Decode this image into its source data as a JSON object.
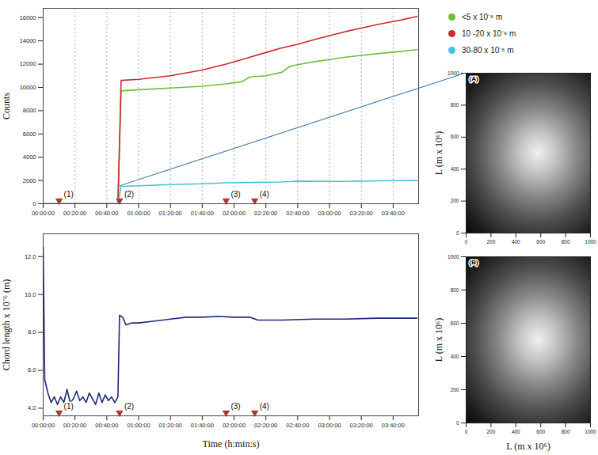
{
  "chart_data": [
    {
      "type": "line",
      "ylabel": "Counts",
      "x": [
        0,
        10,
        20,
        30,
        40,
        47,
        49,
        60,
        80,
        100,
        115,
        125,
        130,
        140,
        150,
        155,
        160,
        170,
        190,
        200,
        210,
        225,
        235
      ],
      "series": [
        {
          "name": "<5 x 10⁻⁶ m",
          "color": "#6cbf3c",
          "values": [
            0,
            0,
            0,
            0,
            0,
            0,
            9700,
            9800,
            9950,
            10100,
            10300,
            10500,
            10900,
            11000,
            11300,
            11800,
            11950,
            12200,
            12600,
            12750,
            12900,
            13100,
            13250
          ]
        },
        {
          "name": "10 -20 x 10⁻⁶ m",
          "color": "#d0282e",
          "values": [
            0,
            0,
            0,
            0,
            0,
            0,
            10600,
            10700,
            11000,
            11500,
            12000,
            12400,
            12600,
            13000,
            13400,
            13550,
            13700,
            14100,
            14800,
            15100,
            15400,
            15800,
            16100
          ]
        },
        {
          "name": "30-80 x 10⁻⁶ m",
          "color": "#46c1dc",
          "values": [
            0,
            0,
            0,
            0,
            0,
            0,
            1500,
            1550,
            1650,
            1720,
            1800,
            1820,
            1830,
            1850,
            1870,
            1900,
            1950,
            1930,
            1920,
            1950,
            1970,
            1990,
            2000
          ]
        }
      ],
      "xlim": [
        0,
        236
      ],
      "xticks": [
        {
          "value": 0,
          "label": "00:00:00"
        },
        {
          "value": 20,
          "label": "00:20:00"
        },
        {
          "value": 40,
          "label": "00:40:00"
        },
        {
          "value": 60,
          "label": "01:00:00"
        },
        {
          "value": 80,
          "label": "01:20:00"
        },
        {
          "value": 100,
          "label": "01:40:00"
        },
        {
          "value": 120,
          "label": "02:00:00"
        },
        {
          "value": 140,
          "label": "02:20:00"
        },
        {
          "value": 160,
          "label": "02:40:00"
        },
        {
          "value": 180,
          "label": "03:00:00"
        },
        {
          "value": 200,
          "label": "03:20:00"
        },
        {
          "value": 220,
          "label": "03:40:00"
        }
      ],
      "ylim": [
        0,
        16800
      ],
      "yticks": [
        0,
        2000,
        4000,
        6000,
        8000,
        10000,
        12000,
        14000,
        16000
      ],
      "grid": "x",
      "legend": "top-right",
      "annotations": [
        {
          "text": "(1)",
          "x": 10
        },
        {
          "text": "(2)",
          "x": 48
        },
        {
          "text": "(3)",
          "x": 115
        },
        {
          "text": "(4)",
          "x": 133
        }
      ]
    },
    {
      "type": "line",
      "xlabel": "Time (h:min:s)",
      "ylabel": "Chord length x 10⁻⁶ (m)",
      "x": [
        0,
        1,
        3,
        5,
        7,
        9,
        11,
        13,
        15,
        17,
        19,
        21,
        23,
        25,
        27,
        29,
        31,
        33,
        35,
        37,
        39,
        41,
        43,
        45,
        47,
        48,
        50,
        52,
        56,
        60,
        70,
        80,
        90,
        100,
        110,
        120,
        130,
        135,
        150,
        170,
        190,
        210,
        235
      ],
      "series": [
        {
          "color": "#1e2a78",
          "values": [
            12.5,
            5.5,
            4.8,
            4.3,
            4.6,
            4.2,
            4.6,
            4.3,
            5.0,
            4.3,
            4.5,
            4.9,
            4.4,
            4.6,
            4.3,
            4.8,
            4.5,
            4.2,
            4.8,
            4.3,
            4.7,
            4.4,
            4.6,
            4.3,
            4.6,
            8.9,
            8.8,
            8.4,
            8.5,
            8.5,
            8.6,
            8.7,
            8.8,
            8.8,
            8.85,
            8.8,
            8.8,
            8.65,
            8.65,
            8.7,
            8.7,
            8.75,
            8.75
          ]
        }
      ],
      "xlim": [
        0,
        236
      ],
      "xticks": [
        {
          "value": 0,
          "label": "00:00:00"
        },
        {
          "value": 20,
          "label": "00:20:00"
        },
        {
          "value": 40,
          "label": "00:40:00"
        },
        {
          "value": 60,
          "label": "01:00:00"
        },
        {
          "value": 80,
          "label": "01:20:00"
        },
        {
          "value": 100,
          "label": "01:40:00"
        },
        {
          "value": 120,
          "label": "02:00:00"
        },
        {
          "value": 140,
          "label": "02:20:00"
        },
        {
          "value": 160,
          "label": "02:40:00"
        },
        {
          "value": 180,
          "label": "03:00:00"
        },
        {
          "value": 200,
          "label": "03:20:00"
        },
        {
          "value": 220,
          "label": "03:40:00"
        }
      ],
      "ylim": [
        3.6,
        13.2
      ],
      "yticks": [
        {
          "value": 4,
          "label": "4.0"
        },
        {
          "value": 6,
          "label": "6.0"
        },
        {
          "value": 8,
          "label": "8.0"
        },
        {
          "value": 10,
          "label": "10.0"
        },
        {
          "value": 12,
          "label": "12.0"
        }
      ],
      "annotations": [
        {
          "text": "(1)",
          "x": 10
        },
        {
          "text": "(2)",
          "x": 48
        },
        {
          "text": "(3)",
          "x": 115
        },
        {
          "text": "(4)",
          "x": 133
        }
      ]
    },
    {
      "type": "image",
      "title": "(A)",
      "ylabel": "L (m x 10⁶)",
      "xlim": [
        0,
        1000
      ],
      "xticks": [
        0,
        200,
        400,
        600,
        800,
        1000
      ],
      "ylim": [
        0,
        1000
      ],
      "yticks": [
        0,
        200,
        400,
        600,
        800,
        1000
      ]
    },
    {
      "type": "image",
      "title": "(B)",
      "xlabel": "L (m x 10⁶)",
      "ylabel": "L (m x 10⁶)",
      "xlim": [
        0,
        1000
      ],
      "xticks": [
        0,
        200,
        400,
        600,
        800,
        1000
      ],
      "ylim": [
        0,
        1000
      ],
      "yticks": [
        0,
        200,
        400,
        600,
        800,
        1000
      ]
    }
  ]
}
